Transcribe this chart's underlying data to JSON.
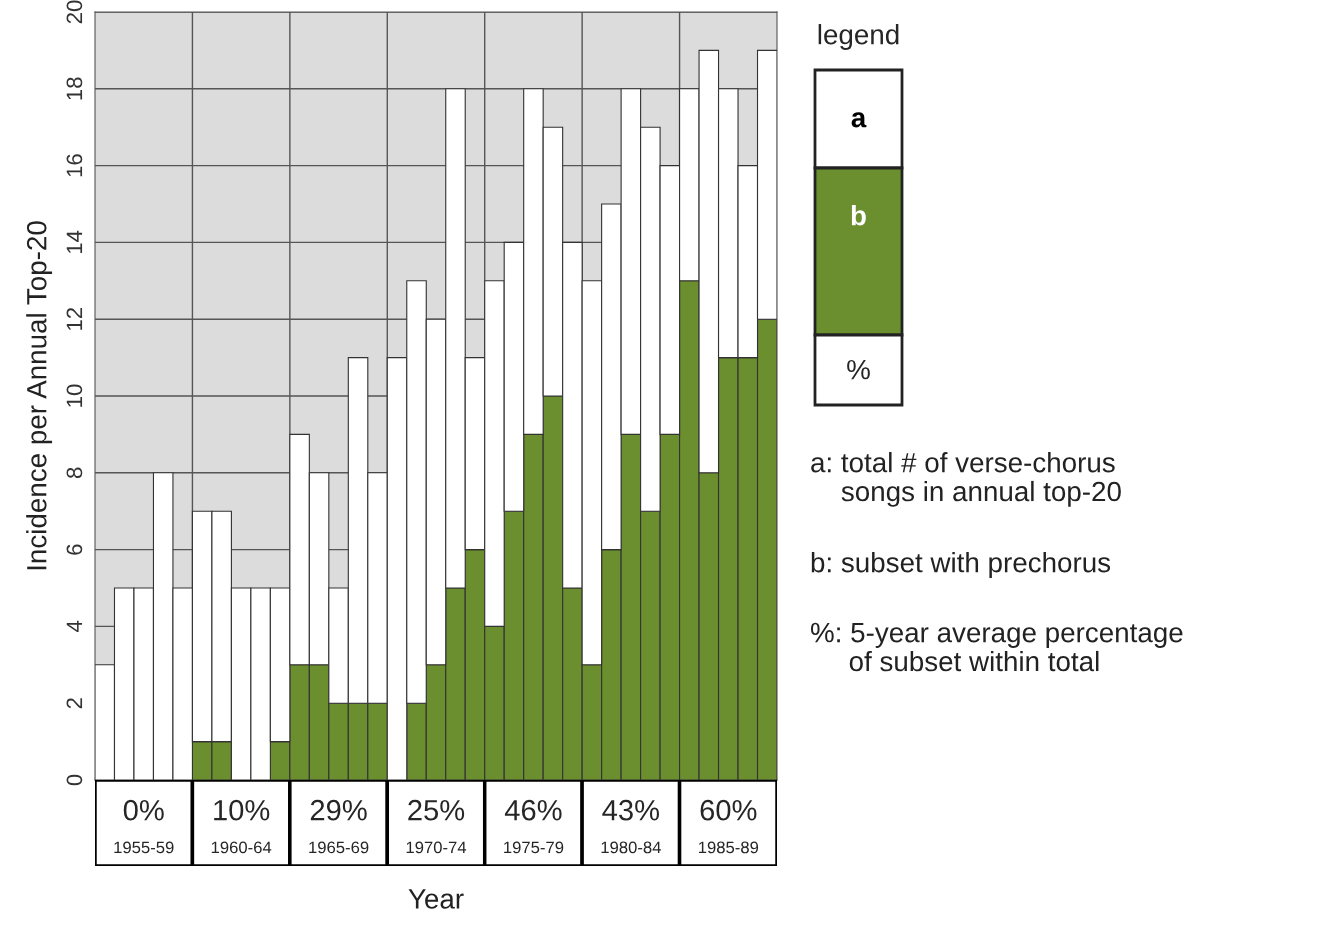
{
  "chart_data": {
    "type": "bar",
    "stacked": true,
    "xlabel": "Year",
    "ylabel": "Incidence per Annual Top-20",
    "legend_title": "legend",
    "categories": [
      null,
      null,
      null,
      null,
      null,
      null,
      null,
      null,
      null,
      null,
      null,
      null,
      null,
      null,
      null,
      null,
      null,
      null,
      null,
      null,
      null,
      null,
      null,
      null,
      null,
      null,
      null,
      null,
      null,
      null,
      null,
      null,
      null,
      null,
      null
    ],
    "series": [
      {
        "name": "b",
        "color": "#6b8e2e",
        "values": [
          0,
          0,
          0,
          0,
          0,
          1,
          1,
          0,
          0,
          1,
          3,
          3,
          2,
          2,
          2,
          0,
          2,
          3,
          5,
          6,
          4,
          7,
          9,
          10,
          5,
          3,
          6,
          9,
          7,
          9,
          13,
          8,
          11,
          11,
          12
        ]
      },
      {
        "name": "a",
        "color": "#ffffff",
        "values": [
          3,
          5,
          5,
          8,
          5,
          6,
          6,
          5,
          5,
          4,
          6,
          5,
          3,
          9,
          6,
          11,
          11,
          9,
          13,
          5,
          9,
          7,
          9,
          7,
          9,
          10,
          9,
          9,
          10,
          7,
          5,
          11,
          7,
          5,
          7
        ]
      }
    ],
    "ylim": [
      0,
      20
    ],
    "yticks": [
      0,
      2,
      4,
      6,
      8,
      10,
      12,
      14,
      16,
      18,
      20
    ],
    "grid": true,
    "legend": "right",
    "annotations": [
      "0%",
      "1955-59",
      "10%",
      "1960-64",
      "29%",
      "1965-69",
      "25%",
      "1970-74",
      "46%",
      "1975-79",
      "43%",
      "1980-84",
      "60%",
      "1985-89",
      "%",
      "a: total # of verse-chorus\n    songs in annual top-20",
      "b: subset with prechorus",
      "%: 5-year average percentage\n     of subset within total"
    ]
  }
}
